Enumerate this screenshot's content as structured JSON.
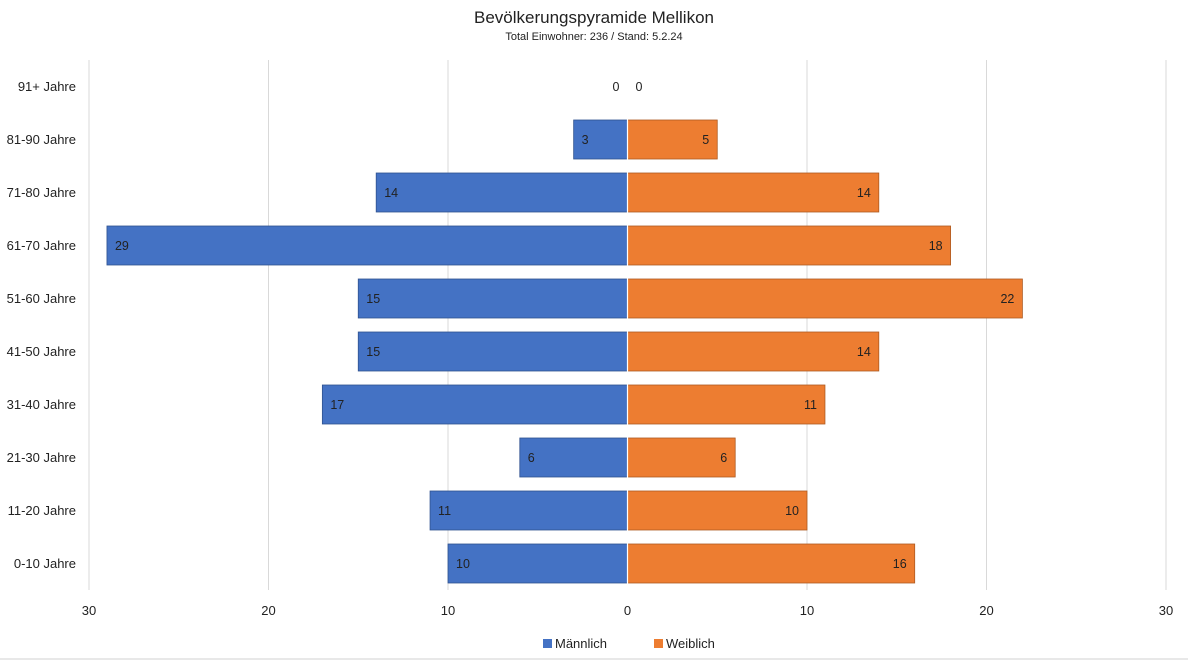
{
  "chart_data": {
    "type": "bar",
    "orientation": "horizontal",
    "title": "Bevölkerungspyramide Mellikon",
    "subtitle": "Total Einwohner: 236 / Stand: 5.2.24",
    "categories": [
      "91+ Jahre",
      "81-90 Jahre",
      "71-80 Jahre",
      "61-70 Jahre",
      "51-60 Jahre",
      "41-50 Jahre",
      "31-40 Jahre",
      "21-30 Jahre",
      "11-20 Jahre",
      "0-10 Jahre"
    ],
    "series": [
      {
        "name": "Männlich",
        "color": "#4472C4",
        "direction": "left",
        "values": [
          0,
          3,
          14,
          29,
          15,
          15,
          17,
          6,
          11,
          10
        ]
      },
      {
        "name": "Weiblich",
        "color": "#ED7D31",
        "direction": "right",
        "values": [
          0,
          5,
          14,
          18,
          22,
          14,
          11,
          6,
          10,
          16
        ]
      }
    ],
    "xlim": [
      -30,
      30
    ],
    "xticks": [
      -30,
      -20,
      -10,
      0,
      10,
      20,
      30
    ],
    "xtick_labels": [
      "30",
      "20",
      "10",
      "0",
      "10",
      "20",
      "30"
    ],
    "xlabel": "",
    "ylabel": "",
    "grid": true,
    "legend_position": "bottom"
  }
}
